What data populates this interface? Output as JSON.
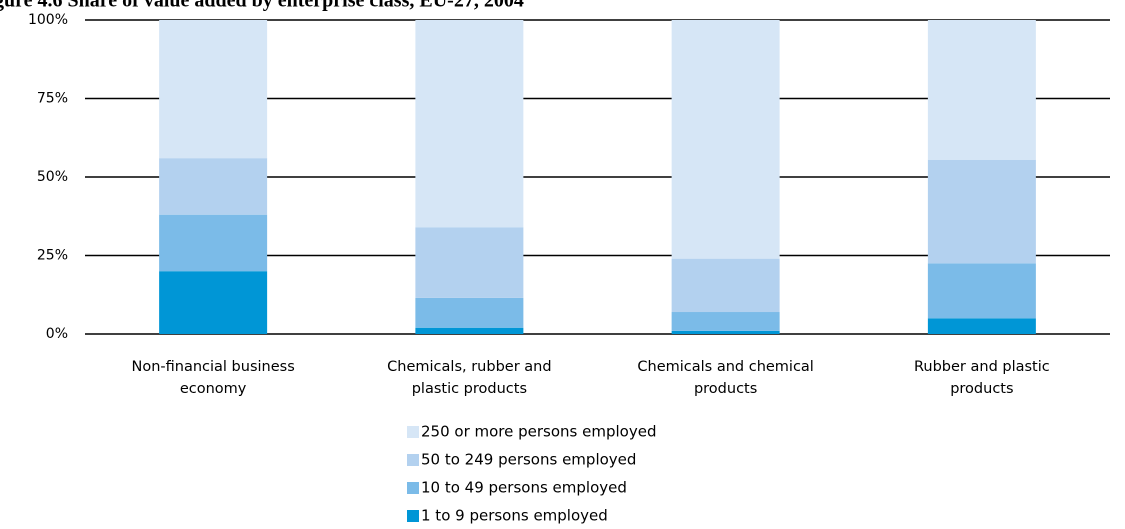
{
  "chart_data": {
    "type": "stacked_bar",
    "title": "gure 4.6 Share of value added by enterprise class, EU-27, 2004",
    "categories": [
      "Non-financial business economy",
      "Chemicals, rubber and plastic products",
      "Chemicals and chemical products",
      "Rubber and plastic products"
    ],
    "series": [
      {
        "name": "1 to 9 persons employed",
        "color": "#0096d6",
        "values": [
          20,
          2,
          1,
          5
        ]
      },
      {
        "name": "10 to 49 persons employed",
        "color": "#7bbbe8",
        "values": [
          18,
          9.5,
          6,
          17.5
        ]
      },
      {
        "name": "50 to 249 persons employed",
        "color": "#b3d1ef",
        "values": [
          18,
          22.5,
          17,
          33
        ]
      },
      {
        "name": "250 or more persons employed",
        "color": "#d6e6f6",
        "values": [
          44,
          66,
          76,
          44.5
        ]
      }
    ],
    "ylim": [
      0,
      100
    ],
    "yticks": [
      {
        "value": 0,
        "label": "0%"
      },
      {
        "value": 25,
        "label": "25%"
      },
      {
        "value": 50,
        "label": "50%"
      },
      {
        "value": 75,
        "label": "75%"
      },
      {
        "value": 100,
        "label": "100%"
      }
    ],
    "grid": true
  }
}
